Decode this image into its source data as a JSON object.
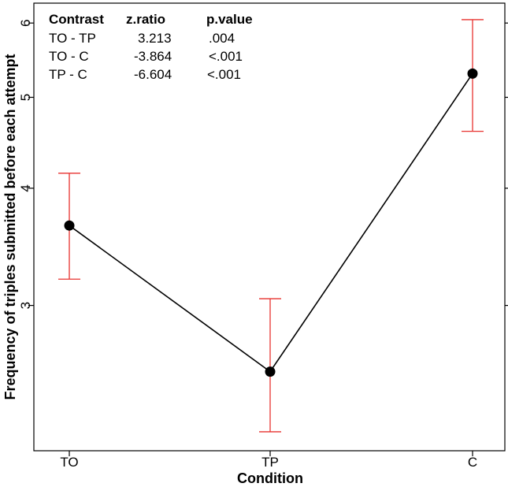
{
  "chart_data": {
    "type": "line",
    "title": "",
    "xlabel": "Condition",
    "ylabel": "Frequency of triples submitted before each attempt",
    "y_scale": "log",
    "ylim": [
      2.1,
      6.3
    ],
    "yticks": [
      "3",
      "4",
      "5",
      "6"
    ],
    "ytick_values": [
      3,
      4,
      5,
      6
    ],
    "categories": [
      "TO",
      "TP",
      "C"
    ],
    "series": [
      {
        "name": "mean",
        "values": [
          3.65,
          2.55,
          5.3
        ],
        "ci_low": [
          3.2,
          2.2,
          4.6
        ],
        "ci_high": [
          4.15,
          3.05,
          6.05
        ]
      }
    ],
    "colors": {
      "line": "#000000",
      "point": "#000000",
      "error_bar": "#e8322f",
      "frame": "#000000"
    },
    "contrast_table": {
      "headers": [
        "Contrast",
        "z.ratio",
        "p.value"
      ],
      "rows": [
        [
          "TO - TP",
          "3.213",
          ".004"
        ],
        [
          "TO - C",
          "-3.864",
          "<.001"
        ],
        [
          "TP - C",
          "-6.604",
          "<.001"
        ]
      ]
    }
  }
}
